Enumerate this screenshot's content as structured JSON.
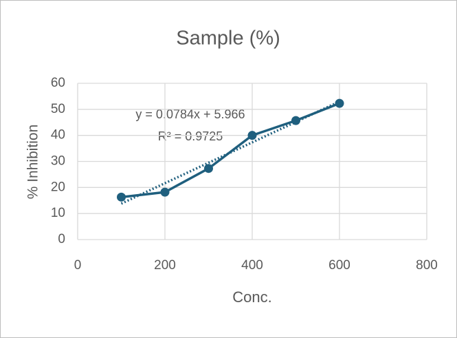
{
  "chart_data": {
    "type": "scatter-line",
    "title": "Sample (%)",
    "x_label": "Conc.",
    "y_label": "% Inhibition",
    "series": [
      {
        "name": "Sample",
        "color": "#1f5f7e",
        "x": [
          100,
          200,
          300,
          400,
          500,
          600
        ],
        "values": [
          16.3,
          18.2,
          27.3,
          40.0,
          45.7,
          52.3
        ]
      }
    ],
    "trendline": {
      "slope": 0.0784,
      "intercept": 5.966,
      "label": "y = 0.0784x + 5.966",
      "r2_label": "R² = 0.9725"
    },
    "xlim": [
      0,
      800
    ],
    "xticks": [
      0,
      200,
      400,
      600,
      800
    ],
    "ylim": [
      0,
      60
    ],
    "yticks": [
      0,
      10,
      20,
      30,
      40,
      50,
      60
    ],
    "grid": true
  }
}
